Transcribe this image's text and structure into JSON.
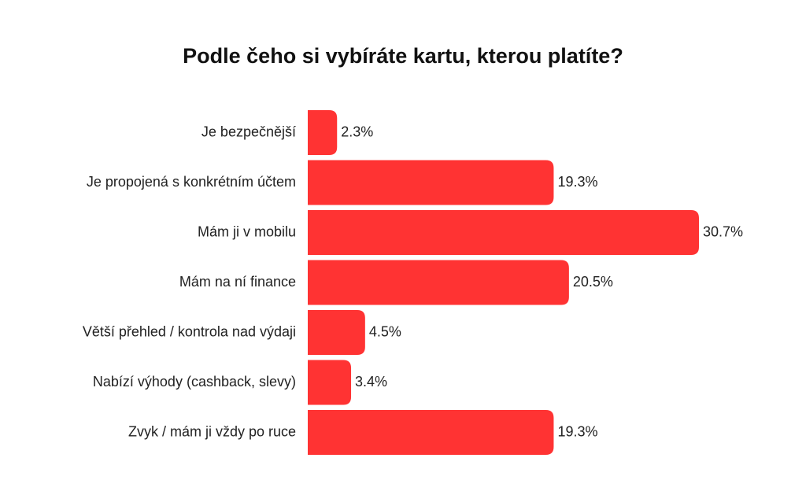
{
  "chart_data": {
    "type": "bar",
    "orientation": "horizontal",
    "title": "Podle čeho si vybíráte kartu, kterou platíte?",
    "categories": [
      "Je bezpečnější",
      "Je propojená s konkrétním účtem",
      "Mám ji v mobilu",
      "Mám na ní finance",
      "Větší přehled / kontrola nad výdaji",
      "Nabízí výhody (cashback, slevy)",
      "Zvyk / mám ji vždy po ruce"
    ],
    "values": [
      2.3,
      19.3,
      30.7,
      20.5,
      4.5,
      3.4,
      19.3
    ],
    "value_labels": [
      "2.3%",
      "19.3%",
      "30.7%",
      "20.5%",
      "4.5%",
      "3.4%",
      "19.3%"
    ],
    "xlim": [
      0,
      30.7
    ],
    "grid": false,
    "legend": "none",
    "bar_color": "#ff3333"
  }
}
